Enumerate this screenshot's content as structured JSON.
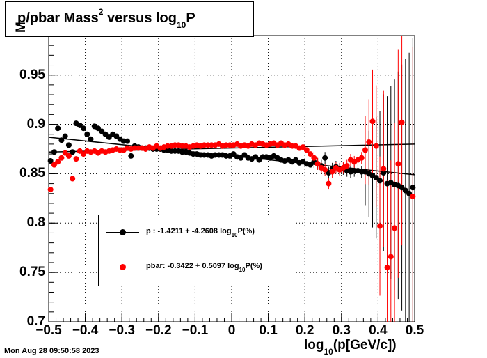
{
  "title": {
    "main": "p/pbar Mass",
    "sup": "2",
    "rest": " versus log",
    "sub": "10",
    "end": "P"
  },
  "ylabel_text": "M",
  "xlabel": {
    "pre": "log",
    "sub": "10",
    "post": "(p[GeV/c])"
  },
  "timestamp": "Mon Aug 28 09:50:58 2023",
  "legend": [
    {
      "pre": "p   : -1.4211 + -4.2608 log",
      "sub": "10",
      "post": "P(%)",
      "color": "#000000"
    },
    {
      "pre": "pbar: -0.3422 + 0.5097 log",
      "sub": "10",
      "post": "P(%)",
      "color": "#ff0000"
    }
  ],
  "chart_data": {
    "type": "scatter",
    "xlim": [
      -0.5,
      0.5
    ],
    "ylim": [
      0.7,
      0.99
    ],
    "xticks": [
      "−0.5",
      "−0.4",
      "−0.3",
      "−0.2",
      "−0.1",
      "0",
      "0.1",
      "0.2",
      "0.3",
      "0.4",
      "0.5"
    ],
    "xtick_values": [
      -0.5,
      -0.4,
      -0.3,
      -0.2,
      -0.1,
      0,
      0.1,
      0.2,
      0.3,
      0.4,
      0.5
    ],
    "yticks": [
      "0.7",
      "0.75",
      "0.8",
      "0.85",
      "0.9",
      "0.95"
    ],
    "ytick_values": [
      0.7,
      0.75,
      0.8,
      0.85,
      0.9,
      0.95
    ],
    "grid": true,
    "series": [
      {
        "name": "p",
        "color": "#000000",
        "fit": [
          [
            -0.5,
            0.887
          ],
          [
            0.5,
            0.849
          ]
        ],
        "points": [
          [
            -0.495,
            0.863
          ],
          [
            -0.485,
            0.872
          ],
          [
            -0.475,
            0.896
          ],
          [
            -0.465,
            0.884
          ],
          [
            -0.455,
            0.888
          ],
          [
            -0.445,
            0.879
          ],
          [
            -0.435,
            0.872
          ],
          [
            -0.425,
            0.901
          ],
          [
            -0.415,
            0.899
          ],
          [
            -0.405,
            0.896
          ],
          [
            -0.395,
            0.89
          ],
          [
            -0.385,
            0.885
          ],
          [
            -0.375,
            0.898
          ],
          [
            -0.365,
            0.896
          ],
          [
            -0.355,
            0.893
          ],
          [
            -0.345,
            0.89
          ],
          [
            -0.335,
            0.887
          ],
          [
            -0.325,
            0.89
          ],
          [
            -0.315,
            0.888
          ],
          [
            -0.305,
            0.885
          ],
          [
            -0.295,
            0.883
          ],
          [
            -0.285,
            0.883
          ],
          [
            -0.275,
            0.868
          ],
          [
            -0.265,
            0.878
          ],
          [
            -0.255,
            0.877
          ],
          [
            -0.245,
            0.876
          ],
          [
            -0.235,
            0.876
          ],
          [
            -0.225,
            0.876
          ],
          [
            -0.215,
            0.875
          ],
          [
            -0.205,
            0.875
          ],
          [
            -0.195,
            0.875
          ],
          [
            -0.185,
            0.874
          ],
          [
            -0.175,
            0.874
          ],
          [
            -0.165,
            0.873
          ],
          [
            -0.155,
            0.873
          ],
          [
            -0.145,
            0.873
          ],
          [
            -0.135,
            0.872
          ],
          [
            -0.125,
            0.872
          ],
          [
            -0.115,
            0.871
          ],
          [
            -0.105,
            0.87
          ],
          [
            -0.095,
            0.87
          ],
          [
            -0.085,
            0.869
          ],
          [
            -0.075,
            0.869
          ],
          [
            -0.065,
            0.869
          ],
          [
            -0.055,
            0.868
          ],
          [
            -0.045,
            0.869
          ],
          [
            -0.035,
            0.869
          ],
          [
            -0.025,
            0.869
          ],
          [
            -0.015,
            0.868
          ],
          [
            -0.005,
            0.868
          ],
          [
            0.005,
            0.87
          ],
          [
            0.015,
            0.867
          ],
          [
            0.025,
            0.866
          ],
          [
            0.035,
            0.869
          ],
          [
            0.045,
            0.866
          ],
          [
            0.055,
            0.865
          ],
          [
            0.065,
            0.867
          ],
          [
            0.075,
            0.864
          ],
          [
            0.085,
            0.867
          ],
          [
            0.095,
            0.867
          ],
          [
            0.105,
            0.866
          ],
          [
            0.115,
            0.868
          ],
          [
            0.125,
            0.866
          ],
          [
            0.135,
            0.864
          ],
          [
            0.145,
            0.863
          ],
          [
            0.155,
            0.864
          ],
          [
            0.165,
            0.862
          ],
          [
            0.175,
            0.864
          ],
          [
            0.185,
            0.861
          ],
          [
            0.195,
            0.862
          ],
          [
            0.205,
            0.86
          ],
          [
            0.215,
            0.859
          ],
          [
            0.225,
            0.862
          ],
          [
            0.235,
            0.86
          ],
          [
            0.245,
            0.858
          ],
          [
            0.255,
            0.866
          ],
          [
            0.265,
            0.851
          ],
          [
            0.275,
            0.855
          ],
          [
            0.285,
            0.857
          ],
          [
            0.295,
            0.855
          ],
          [
            0.305,
            0.855
          ],
          [
            0.315,
            0.853
          ],
          [
            0.325,
            0.852
          ],
          [
            0.335,
            0.853
          ],
          [
            0.345,
            0.853
          ],
          [
            0.355,
            0.852
          ],
          [
            0.365,
            0.852
          ],
          [
            0.375,
            0.85
          ],
          [
            0.385,
            0.848
          ],
          [
            0.395,
            0.846
          ],
          [
            0.405,
            0.843
          ],
          [
            0.415,
            0.851
          ],
          [
            0.425,
            0.84
          ],
          [
            0.435,
            0.841
          ],
          [
            0.445,
            0.839
          ],
          [
            0.455,
            0.838
          ],
          [
            0.465,
            0.836
          ],
          [
            0.475,
            0.833
          ],
          [
            0.485,
            0.83
          ],
          [
            0.495,
            0.836
          ]
        ]
      },
      {
        "name": "pbar",
        "color": "#ff0000",
        "fit": [
          [
            -0.5,
            0.872
          ],
          [
            0.5,
            0.88
          ]
        ],
        "points": [
          [
            -0.495,
            0.834
          ],
          [
            -0.485,
            0.859
          ],
          [
            -0.475,
            0.862
          ],
          [
            -0.465,
            0.866
          ],
          [
            -0.455,
            0.871
          ],
          [
            -0.445,
            0.868
          ],
          [
            -0.435,
            0.845
          ],
          [
            -0.425,
            0.865
          ],
          [
            -0.415,
            0.873
          ],
          [
            -0.405,
            0.87
          ],
          [
            -0.395,
            0.873
          ],
          [
            -0.385,
            0.872
          ],
          [
            -0.375,
            0.873
          ],
          [
            -0.365,
            0.871
          ],
          [
            -0.355,
            0.873
          ],
          [
            -0.345,
            0.872
          ],
          [
            -0.335,
            0.873
          ],
          [
            -0.325,
            0.874
          ],
          [
            -0.315,
            0.875
          ],
          [
            -0.305,
            0.874
          ],
          [
            -0.295,
            0.874
          ],
          [
            -0.285,
            0.876
          ],
          [
            -0.275,
            0.875
          ],
          [
            -0.265,
            0.876
          ],
          [
            -0.255,
            0.876
          ],
          [
            -0.245,
            0.876
          ],
          [
            -0.235,
            0.875
          ],
          [
            -0.225,
            0.877
          ],
          [
            -0.215,
            0.876
          ],
          [
            -0.205,
            0.878
          ],
          [
            -0.195,
            0.876
          ],
          [
            -0.185,
            0.877
          ],
          [
            -0.175,
            0.878
          ],
          [
            -0.165,
            0.878
          ],
          [
            -0.155,
            0.879
          ],
          [
            -0.145,
            0.879
          ],
          [
            -0.135,
            0.878
          ],
          [
            -0.125,
            0.878
          ],
          [
            -0.115,
            0.877
          ],
          [
            -0.105,
            0.878
          ],
          [
            -0.095,
            0.879
          ],
          [
            -0.085,
            0.878
          ],
          [
            -0.075,
            0.879
          ],
          [
            -0.065,
            0.879
          ],
          [
            -0.055,
            0.879
          ],
          [
            -0.045,
            0.879
          ],
          [
            -0.035,
            0.88
          ],
          [
            -0.025,
            0.878
          ],
          [
            -0.015,
            0.879
          ],
          [
            -0.005,
            0.879
          ],
          [
            0.005,
            0.879
          ],
          [
            0.015,
            0.88
          ],
          [
            0.025,
            0.878
          ],
          [
            0.035,
            0.879
          ],
          [
            0.045,
            0.878
          ],
          [
            0.055,
            0.88
          ],
          [
            0.065,
            0.879
          ],
          [
            0.075,
            0.881
          ],
          [
            0.085,
            0.88
          ],
          [
            0.095,
            0.879
          ],
          [
            0.105,
            0.88
          ],
          [
            0.115,
            0.881
          ],
          [
            0.125,
            0.879
          ],
          [
            0.135,
            0.881
          ],
          [
            0.145,
            0.879
          ],
          [
            0.155,
            0.88
          ],
          [
            0.165,
            0.878
          ],
          [
            0.175,
            0.878
          ],
          [
            0.185,
            0.876
          ],
          [
            0.195,
            0.877
          ],
          [
            0.205,
            0.874
          ],
          [
            0.215,
            0.87
          ],
          [
            0.225,
            0.866
          ],
          [
            0.235,
            0.86
          ],
          [
            0.245,
            0.856
          ],
          [
            0.255,
            0.854
          ],
          [
            0.265,
            0.84
          ],
          [
            0.275,
            0.852
          ],
          [
            0.285,
            0.856
          ],
          [
            0.295,
            0.854
          ],
          [
            0.305,
            0.856
          ],
          [
            0.315,
            0.858
          ],
          [
            0.325,
            0.864
          ],
          [
            0.335,
            0.862
          ],
          [
            0.345,
            0.864
          ],
          [
            0.355,
            0.866
          ],
          [
            0.365,
            0.874
          ],
          [
            0.375,
            0.882
          ],
          [
            0.385,
            0.903
          ],
          [
            0.395,
            0.878
          ],
          [
            0.405,
            0.797
          ],
          [
            0.415,
            0.855
          ],
          [
            0.425,
            0.755
          ],
          [
            0.435,
            0.766
          ],
          [
            0.445,
            0.795
          ],
          [
            0.455,
            0.86
          ],
          [
            0.465,
            0.902
          ],
          [
            0.495,
            0.827
          ]
        ]
      }
    ]
  }
}
